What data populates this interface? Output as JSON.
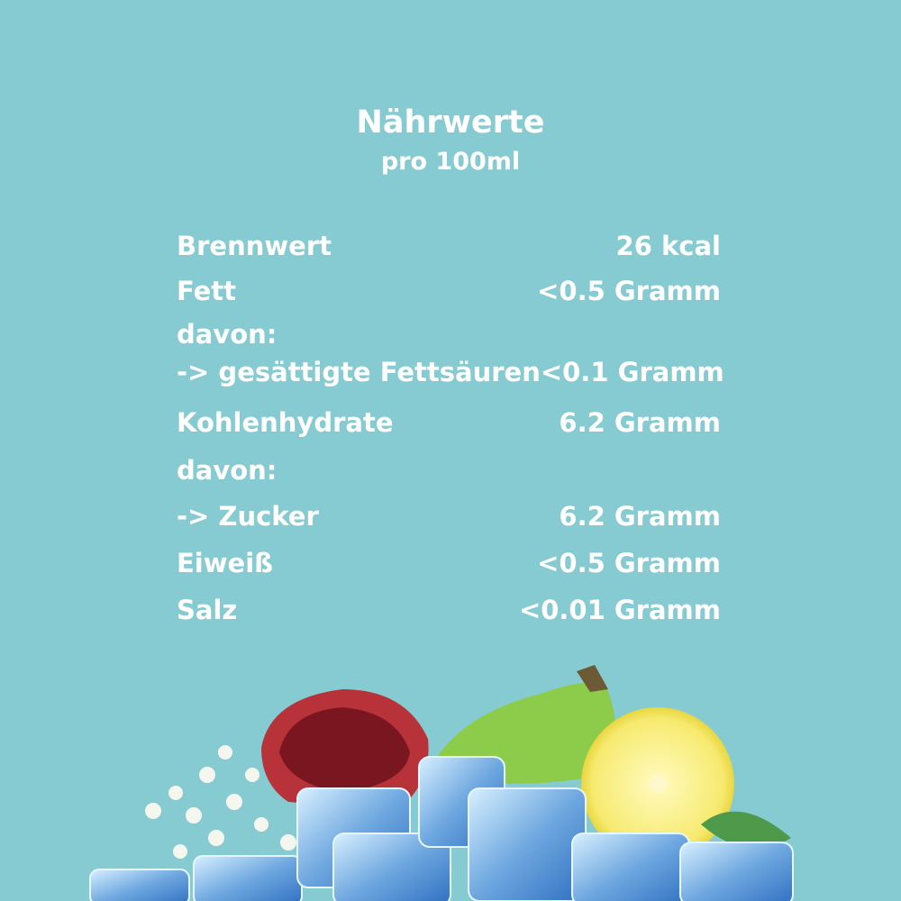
{
  "header": {
    "title": "Nährwerte",
    "subtitle": "pro 100ml"
  },
  "nutrition": [
    {
      "label": "Brennwert",
      "value": "26 kcal"
    },
    {
      "label": "Fett",
      "value": "<0.5 Gramm"
    },
    {
      "label": "davon:",
      "value": ""
    },
    {
      "label": "-> gesättigte Fettsäuren",
      "value": "<0.1 Gramm"
    },
    {
      "label": "Kohlenhydrate",
      "value": "6.2 Gramm"
    },
    {
      "label": "davon:",
      "value": ""
    },
    {
      "label": "-> Zucker",
      "value": "6.2 Gramm"
    },
    {
      "label": "Eiweiß",
      "value": "<0.5 Gramm"
    },
    {
      "label": "Salz",
      "value": "<0.01 Gramm"
    }
  ],
  "colors": {
    "background": "#86cbd1",
    "text": "#ffffff"
  },
  "illustration": [
    "pomegranate",
    "prickly-pear",
    "lemon",
    "mint-leaf",
    "elderflower",
    "ice-cubes"
  ]
}
